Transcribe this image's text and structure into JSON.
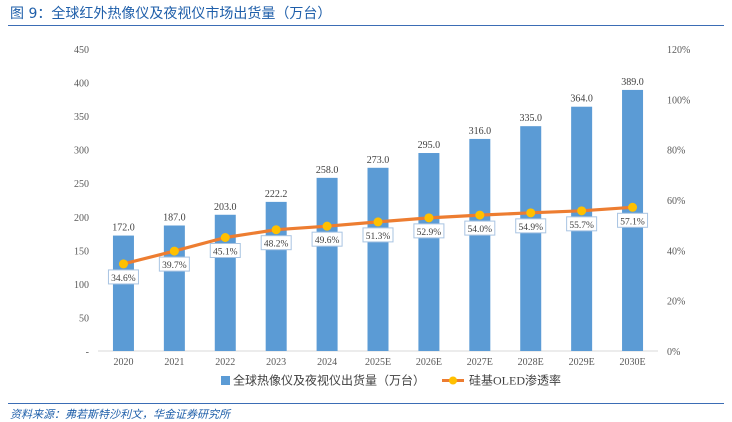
{
  "figure": {
    "title": "图 9：全球红外热像仪及夜视仪市场出货量（万台）",
    "source": "资料来源：弗若斯特沙利文，华金证券研究所"
  },
  "colors": {
    "bar": "#5b9bd5",
    "line": "#ed7d31",
    "marker": "#ffc000",
    "label_box_border": "#a9c4e2",
    "axis_text": "#595959",
    "title": "#1f5faa"
  },
  "chart_data": {
    "type": "bar",
    "categories": [
      "2020",
      "2021",
      "2022",
      "2023",
      "2024",
      "2025E",
      "2026E",
      "2027E",
      "2028E",
      "2029E",
      "2030E"
    ],
    "series": [
      {
        "name": "全球热像仪及夜视仪出货量（万台）",
        "type": "bar",
        "axis": "left",
        "values": [
          172.0,
          187.0,
          203.0,
          222.2,
          258.0,
          273.0,
          295.0,
          316.0,
          335.0,
          364.0,
          389.0
        ],
        "labels": [
          "172.0",
          "187.0",
          "203.0",
          "222.2",
          "258.0",
          "273.0",
          "295.0",
          "316.0",
          "335.0",
          "364.0",
          "389.0"
        ]
      },
      {
        "name": "硅基OLED渗透率",
        "type": "line",
        "axis": "right",
        "values": [
          34.6,
          39.7,
          45.1,
          48.2,
          49.6,
          51.3,
          52.9,
          54.0,
          54.9,
          55.7,
          57.1
        ],
        "labels": [
          "34.6%",
          "39.7%",
          "45.1%",
          "48.2%",
          "49.6%",
          "51.3%",
          "52.9%",
          "54.0%",
          "54.9%",
          "55.7%",
          "57.1%"
        ]
      }
    ],
    "y_left": {
      "min": 0,
      "max": 450,
      "ticks": [
        0,
        50,
        100,
        150,
        200,
        250,
        300,
        350,
        400,
        450
      ],
      "tick_labels": [
        "-",
        "50",
        "100",
        "150",
        "200",
        "250",
        "300",
        "350",
        "400",
        "450"
      ]
    },
    "y_right": {
      "min": 0,
      "max": 120,
      "ticks": [
        0,
        20,
        40,
        60,
        80,
        100,
        120
      ],
      "tick_labels": [
        "0%",
        "20%",
        "40%",
        "60%",
        "80%",
        "100%",
        "120%"
      ]
    },
    "legend_position": "bottom-center",
    "grid": false
  }
}
